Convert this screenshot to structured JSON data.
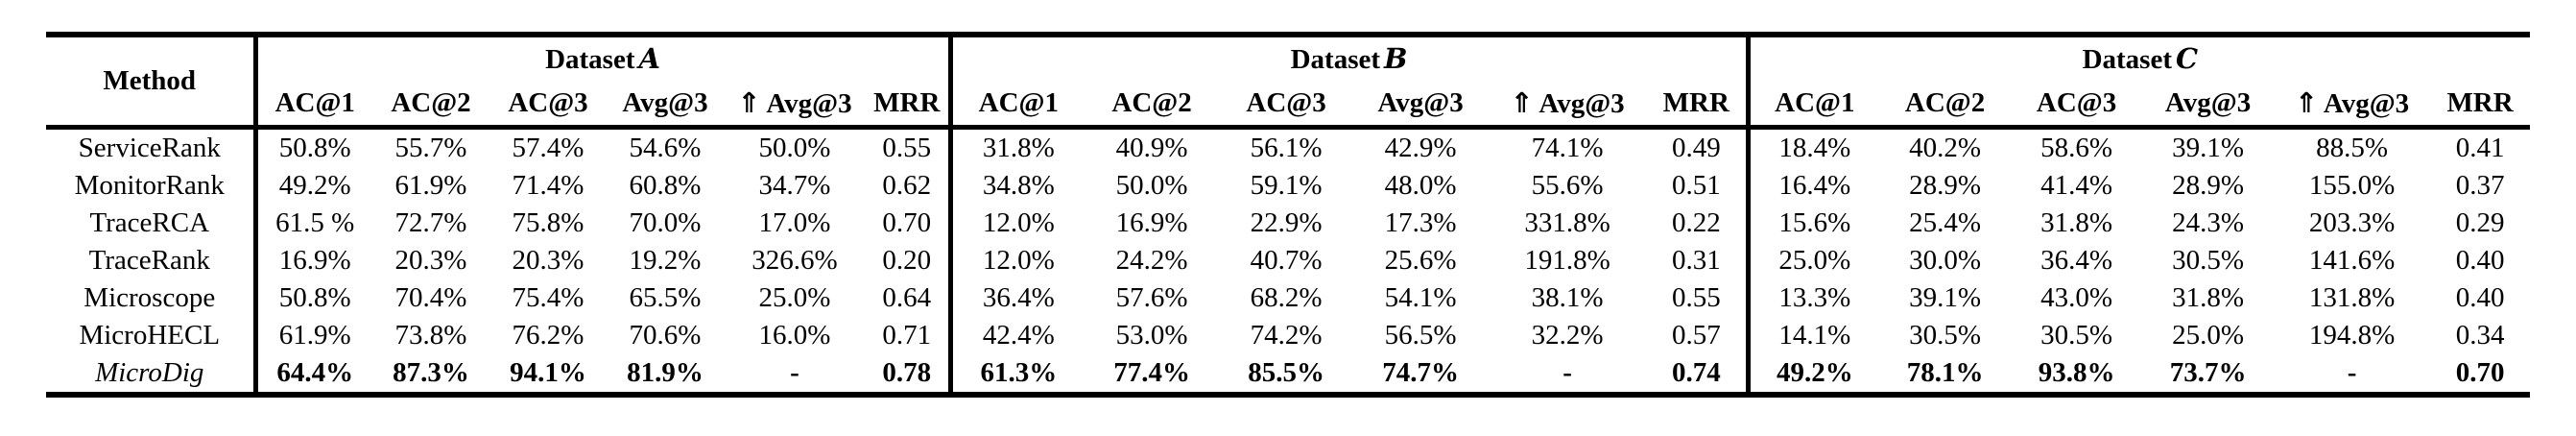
{
  "table": {
    "corner_header": "Method",
    "groups": [
      {
        "name": "Dataset",
        "letter": "A"
      },
      {
        "name": "Dataset",
        "letter": "B"
      },
      {
        "name": "Dataset",
        "letter": "C"
      }
    ],
    "metric_headers": [
      "AC@1",
      "AC@2",
      "AC@3",
      "Avg@3",
      "⇑ Avg@3",
      "MRR"
    ],
    "rows": [
      {
        "method": "ServiceRank",
        "emphasis": "none",
        "values": [
          "50.8%",
          "55.7%",
          "57.4%",
          "54.6%",
          "50.0%",
          "0.55",
          "31.8%",
          "40.9%",
          "56.1%",
          "42.9%",
          "74.1%",
          "0.49",
          "18.4%",
          "40.2%",
          "58.6%",
          "39.1%",
          "88.5%",
          "0.41"
        ]
      },
      {
        "method": "MonitorRank",
        "emphasis": "none",
        "values": [
          "49.2%",
          "61.9%",
          "71.4%",
          "60.8%",
          "34.7%",
          "0.62",
          "34.8%",
          "50.0%",
          "59.1%",
          "48.0%",
          "55.6%",
          "0.51",
          "16.4%",
          "28.9%",
          "41.4%",
          "28.9%",
          "155.0%",
          "0.37"
        ]
      },
      {
        "method": "TraceRCA",
        "emphasis": "none",
        "values": [
          "61.5 %",
          "72.7%",
          "75.8%",
          "70.0%",
          "17.0%",
          "0.70",
          "12.0%",
          "16.9%",
          "22.9%",
          "17.3%",
          "331.8%",
          "0.22",
          "15.6%",
          "25.4%",
          "31.8%",
          "24.3%",
          "203.3%",
          "0.29"
        ]
      },
      {
        "method": "TraceRank",
        "emphasis": "none",
        "values": [
          "16.9%",
          "20.3%",
          "20.3%",
          "19.2%",
          "326.6%",
          "0.20",
          "12.0%",
          "24.2%",
          "40.7%",
          "25.6%",
          "191.8%",
          "0.31",
          "25.0%",
          "30.0%",
          "36.4%",
          "30.5%",
          "141.6%",
          "0.40"
        ]
      },
      {
        "method": "Microscope",
        "emphasis": "none",
        "values": [
          "50.8%",
          "70.4%",
          "75.4%",
          "65.5%",
          "25.0%",
          "0.64",
          "36.4%",
          "57.6%",
          "68.2%",
          "54.1%",
          "38.1%",
          "0.55",
          "13.3%",
          "39.1%",
          "43.0%",
          "31.8%",
          "131.8%",
          "0.40"
        ]
      },
      {
        "method": "MicroHECL",
        "emphasis": "none",
        "values": [
          "61.9%",
          "73.8%",
          "76.2%",
          "70.6%",
          "16.0%",
          "0.71",
          "42.4%",
          "53.0%",
          "74.2%",
          "56.5%",
          "32.2%",
          "0.57",
          "14.1%",
          "30.5%",
          "30.5%",
          "25.0%",
          "194.8%",
          "0.34"
        ]
      },
      {
        "method": "MicroDig",
        "emphasis": "best",
        "values": [
          "64.4%",
          "87.3%",
          "94.1%",
          "81.9%",
          "-",
          "0.78",
          "61.3%",
          "77.4%",
          "85.5%",
          "74.7%",
          "-",
          "0.74",
          "49.2%",
          "78.1%",
          "93.8%",
          "73.7%",
          "-",
          "0.70"
        ]
      }
    ]
  }
}
